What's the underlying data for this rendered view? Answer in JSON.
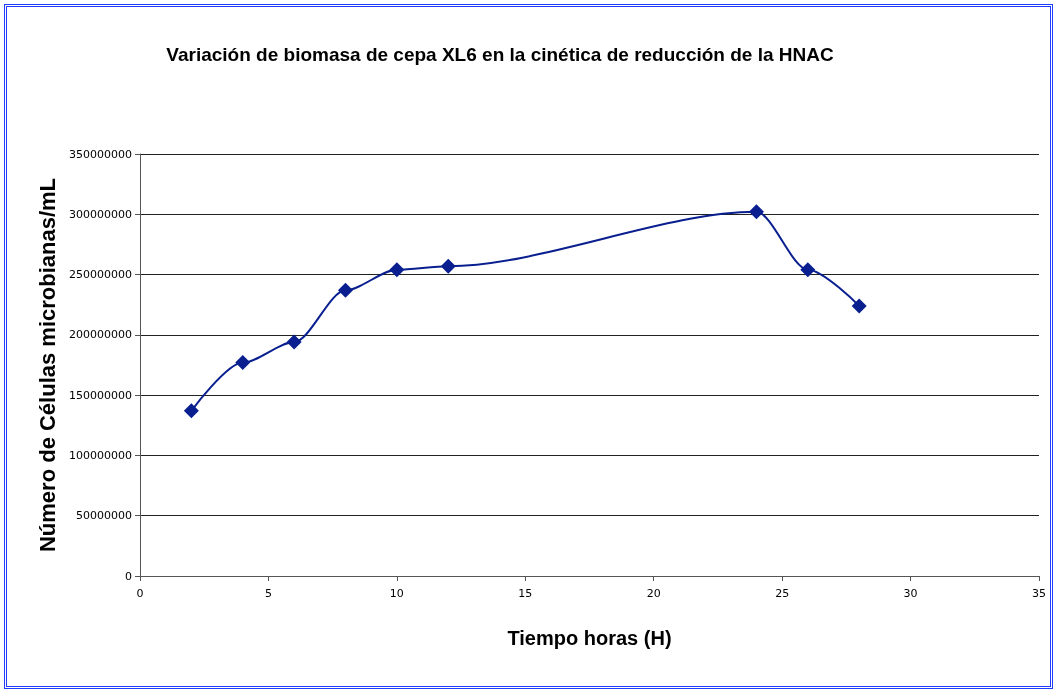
{
  "chart_data": {
    "type": "line",
    "title": "Variación de biomasa de cepa XL6 en la cinética de reducción de la HNAC",
    "xlabel": "Tiempo horas (H)",
    "ylabel": "Número de Células microbianas/mL",
    "x": [
      2,
      4,
      6,
      8,
      10,
      12,
      24,
      26,
      28
    ],
    "series": [
      {
        "color": "#0a1f8f",
        "values": [
          137000000,
          177000000,
          194000000,
          237000000,
          254000000,
          257000000,
          302000000,
          254000000,
          224000000
        ]
      }
    ],
    "xlim": [
      0,
      35
    ],
    "xticks": [
      0,
      5,
      10,
      15,
      20,
      25,
      30,
      35
    ],
    "ylim": [
      0,
      350000000
    ],
    "yticks": [
      0,
      50000000,
      100000000,
      150000000,
      200000000,
      250000000,
      300000000,
      350000000
    ],
    "grid": "y",
    "marker": "diamond",
    "line_style": "solid"
  }
}
